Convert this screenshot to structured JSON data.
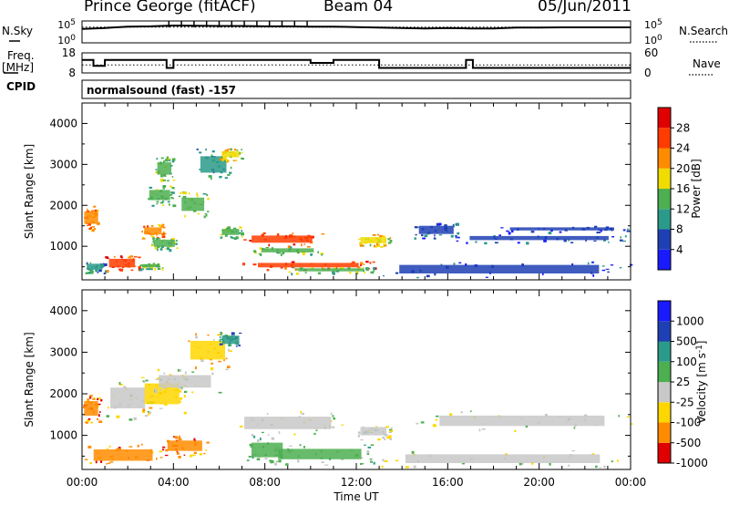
{
  "header": {
    "station": "Prince George (fitACF)",
    "beam": "Beam 04",
    "date": "05/Jun/2011"
  },
  "left_labels": {
    "nsky": "N.Sky",
    "freq_line1": "Freq.",
    "freq_line2": "[MHz]",
    "cpid": "CPID"
  },
  "right_labels": {
    "nsearch": "N.Search",
    "nave": "Nave"
  },
  "cpid_text": "normalsound (fast) -157",
  "chart_data": [
    {
      "type": "line",
      "name": "noise-panel",
      "left_axis": {
        "ticks": [
          "10^5",
          "10^0"
        ]
      },
      "right_axis": {
        "ticks": [
          "10^5",
          "10^0"
        ]
      },
      "series": [
        {
          "name": "N.Sky",
          "style": "solid",
          "x": [
            0,
            1,
            2,
            3,
            4,
            5,
            6,
            7,
            8,
            9,
            10,
            11,
            12,
            13,
            14,
            15,
            16,
            17,
            18,
            19,
            20,
            21,
            22,
            23,
            24
          ],
          "values": [
            1500,
            2500,
            5000,
            6000,
            9000,
            8000,
            7000,
            7000,
            6000,
            6000,
            5000,
            5000,
            4000,
            3000,
            2500,
            2000,
            2500,
            2000,
            2000,
            3000,
            3000,
            3500,
            3500,
            3500,
            3500
          ]
        },
        {
          "name": "N.Search",
          "style": "dotted",
          "x": [
            0,
            24
          ],
          "values": [
            4000,
            4000
          ]
        }
      ]
    },
    {
      "type": "line",
      "name": "freq-nave-panel",
      "left_axis": {
        "label": "Freq. [MHz]",
        "ticks": [
          "18",
          "8"
        ],
        "ylim": [
          8,
          18
        ]
      },
      "right_axis": {
        "label": "Nave",
        "ticks": [
          "60",
          "0"
        ],
        "ylim": [
          0,
          60
        ]
      },
      "series": [
        {
          "name": "Freq.",
          "style": "solid",
          "x": [
            0,
            0.5,
            0.5,
            1.0,
            1.0,
            3.7,
            3.7,
            4.0,
            4.0,
            10.0,
            10.0,
            11.0,
            11.0,
            13.0,
            13.0,
            16.8,
            16.8,
            17.1,
            17.1,
            24
          ],
          "values": [
            14.5,
            14.5,
            11.5,
            11.5,
            14.5,
            14.5,
            10.5,
            10.5,
            14.5,
            14.5,
            13.0,
            13.0,
            14.5,
            14.5,
            10.5,
            10.5,
            14.5,
            14.5,
            10.5,
            10.5
          ]
        },
        {
          "name": "Nave",
          "style": "dotted",
          "x": [
            0,
            24
          ],
          "values": [
            24,
            24
          ]
        }
      ]
    },
    {
      "type": "heatmap",
      "name": "power-panel",
      "xlabel": "",
      "ylabel": "Slant Range [km]",
      "xlim": [
        0,
        24
      ],
      "ylim": [
        180,
        4500
      ],
      "yticks": [
        1000,
        2000,
        3000,
        4000
      ],
      "xticks": [
        "00:00",
        "04:00",
        "08:00",
        "12:00",
        "16:00",
        "20:00",
        "00:00"
      ],
      "colorbar": {
        "label": "Power [dB]",
        "ticks": [
          4,
          8,
          12,
          16,
          20,
          24,
          28
        ],
        "colors": [
          "#1a1aff",
          "#1f3fb4",
          "#2c9a8a",
          "#4caf50",
          "#f0dc00",
          "#ff8c00",
          "#ff3c00",
          "#e00000"
        ]
      },
      "regions": [
        {
          "x0": 0.0,
          "x1": 0.8,
          "y0": 1400,
          "y1": 2000,
          "level": 5
        },
        {
          "x0": 0.1,
          "x1": 1.0,
          "y0": 350,
          "y1": 650,
          "level": 2
        },
        {
          "x0": 1.0,
          "x1": 2.5,
          "y0": 380,
          "y1": 800,
          "level": 6
        },
        {
          "x0": 2.5,
          "x1": 3.5,
          "y0": 450,
          "y1": 600,
          "level": 3
        },
        {
          "x0": 2.6,
          "x1": 3.6,
          "y0": 1200,
          "y1": 1550,
          "level": 5
        },
        {
          "x0": 3.0,
          "x1": 4.2,
          "y0": 900,
          "y1": 1250,
          "level": 3
        },
        {
          "x0": 2.8,
          "x1": 4.0,
          "y0": 2000,
          "y1": 2500,
          "level": 3
        },
        {
          "x0": 3.2,
          "x1": 4.0,
          "y0": 2600,
          "y1": 3200,
          "level": 3
        },
        {
          "x0": 4.2,
          "x1": 5.5,
          "y0": 1700,
          "y1": 2350,
          "level": 3
        },
        {
          "x0": 5.0,
          "x1": 6.5,
          "y0": 2600,
          "y1": 3400,
          "level": 2
        },
        {
          "x0": 6.0,
          "x1": 7.0,
          "y0": 3100,
          "y1": 3400,
          "level": 4
        },
        {
          "x0": 6.0,
          "x1": 7.0,
          "y0": 1200,
          "y1": 1500,
          "level": 3
        },
        {
          "x0": 7.0,
          "x1": 10.5,
          "y0": 1000,
          "y1": 1350,
          "level": 6
        },
        {
          "x0": 7.5,
          "x1": 10.5,
          "y0": 800,
          "y1": 1000,
          "level": 3
        },
        {
          "x0": 7.0,
          "x1": 12.8,
          "y0": 430,
          "y1": 650,
          "level": 6
        },
        {
          "x0": 9.0,
          "x1": 12.8,
          "y0": 350,
          "y1": 500,
          "level": 3
        },
        {
          "x0": 12.0,
          "x1": 13.5,
          "y0": 1000,
          "y1": 1300,
          "level": 4
        },
        {
          "x0": 14.5,
          "x1": 16.5,
          "y0": 1200,
          "y1": 1600,
          "level": 1
        },
        {
          "x0": 16.0,
          "x1": 24.0,
          "y0": 1100,
          "y1": 1300,
          "level": 1
        },
        {
          "x0": 18.0,
          "x1": 24.0,
          "y0": 1350,
          "y1": 1500,
          "level": 1
        },
        {
          "x0": 12.5,
          "x1": 24.0,
          "y0": 230,
          "y1": 650,
          "level": 1
        }
      ]
    },
    {
      "type": "heatmap",
      "name": "velocity-panel",
      "xlabel": "Time UT",
      "ylabel": "Slant Range [km]",
      "xlim": [
        0,
        24
      ],
      "ylim": [
        180,
        4500
      ],
      "yticks": [
        1000,
        2000,
        3000,
        4000
      ],
      "xticks": [
        "00:00",
        "04:00",
        "08:00",
        "12:00",
        "16:00",
        "20:00",
        "00:00"
      ],
      "colorbar": {
        "label": "Velocity [m s^-1]",
        "ticks": [
          "1000",
          "500",
          "100",
          "25",
          "-25",
          "-100",
          "-500",
          "-1000"
        ],
        "colors": [
          "#1a1aff",
          "#1f3fb4",
          "#2c9a8a",
          "#4caf50",
          "#c8c8c8",
          "#ffd700",
          "#ff8c00",
          "#e00000"
        ]
      },
      "regions": [
        {
          "x0": 0.0,
          "x1": 0.8,
          "y0": 1300,
          "y1": 2000,
          "level": 6
        },
        {
          "x0": 0.1,
          "x1": 3.5,
          "y0": 250,
          "y1": 800,
          "level": 6
        },
        {
          "x0": 1.0,
          "x1": 3.0,
          "y0": 1400,
          "y1": 2400,
          "level": 4
        },
        {
          "x0": 2.5,
          "x1": 4.5,
          "y0": 1500,
          "y1": 2500,
          "level": 5
        },
        {
          "x0": 3.0,
          "x1": 6.0,
          "y0": 2000,
          "y1": 2600,
          "level": 4
        },
        {
          "x0": 3.5,
          "x1": 5.5,
          "y0": 500,
          "y1": 1000,
          "level": 6
        },
        {
          "x0": 4.5,
          "x1": 6.5,
          "y0": 2600,
          "y1": 3500,
          "level": 5
        },
        {
          "x0": 6.0,
          "x1": 7.0,
          "y0": 3100,
          "y1": 3500,
          "level": 2
        },
        {
          "x0": 6.5,
          "x1": 11.5,
          "y0": 1000,
          "y1": 1600,
          "level": 4
        },
        {
          "x0": 7.2,
          "x1": 9.0,
          "y0": 300,
          "y1": 1000,
          "level": 3
        },
        {
          "x0": 8.0,
          "x1": 12.8,
          "y0": 300,
          "y1": 800,
          "level": 3
        },
        {
          "x0": 12.0,
          "x1": 13.5,
          "y0": 900,
          "y1": 1300,
          "level": 4
        },
        {
          "x0": 14.5,
          "x1": 24.0,
          "y0": 1100,
          "y1": 1600,
          "level": 4
        },
        {
          "x0": 12.8,
          "x1": 24.0,
          "y0": 230,
          "y1": 650,
          "level": 4
        }
      ]
    }
  ]
}
